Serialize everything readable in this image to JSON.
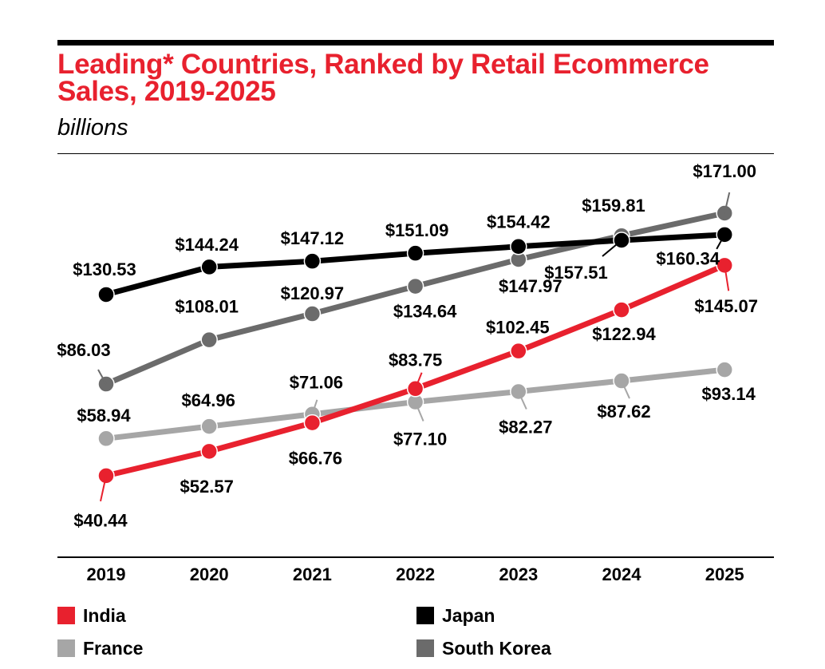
{
  "header": {
    "title": "Leading* Countries, Ranked by Retail Ecommerce Sales, 2019-2025",
    "subtitle": "billions"
  },
  "chart_data": {
    "type": "line",
    "title": "Leading* Countries, Ranked by Retail Ecommerce Sales, 2019-2025",
    "subtitle": "billions",
    "xlabel": "",
    "ylabel": "",
    "x": [
      "2019",
      "2020",
      "2021",
      "2022",
      "2023",
      "2024",
      "2025"
    ],
    "ylim": [
      40,
      171
    ],
    "grid": false,
    "legend_position": "bottom",
    "series": [
      {
        "name": "Japan",
        "color": "#000000",
        "values": [
          130.53,
          144.24,
          147.12,
          151.09,
          154.42,
          157.51,
          160.34
        ],
        "labels": [
          "$130.53",
          "$144.24",
          "$147.12",
          "$151.09",
          "$154.42",
          "$157.51",
          "$160.34"
        ]
      },
      {
        "name": "South Korea",
        "color": "#6b6b6b",
        "values": [
          86.03,
          108.01,
          120.97,
          134.64,
          147.97,
          159.81,
          171.0
        ],
        "labels": [
          "$86.03",
          "$108.01",
          "$120.97",
          "$134.64",
          "$147.97",
          "$159.81",
          "$171.00"
        ]
      },
      {
        "name": "France",
        "color": "#a6a6a6",
        "values": [
          58.94,
          64.96,
          71.06,
          77.1,
          82.27,
          87.62,
          93.14
        ],
        "labels": [
          "$58.94",
          "$64.96",
          "$71.06",
          "$77.10",
          "$82.27",
          "$87.62",
          "$93.14"
        ]
      },
      {
        "name": "India",
        "color": "#e8212e",
        "values": [
          40.44,
          52.57,
          66.76,
          83.75,
          102.45,
          122.94,
          145.07
        ],
        "labels": [
          "$40.44",
          "$52.57",
          "$66.76",
          "$83.75",
          "$102.45",
          "$122.94",
          "$145.07"
        ]
      }
    ]
  },
  "legend": [
    {
      "name": "India",
      "color": "#e8212e"
    },
    {
      "name": "Japan",
      "color": "#000000"
    },
    {
      "name": "France",
      "color": "#a6a6a6"
    },
    {
      "name": "South Korea",
      "color": "#6b6b6b"
    }
  ]
}
